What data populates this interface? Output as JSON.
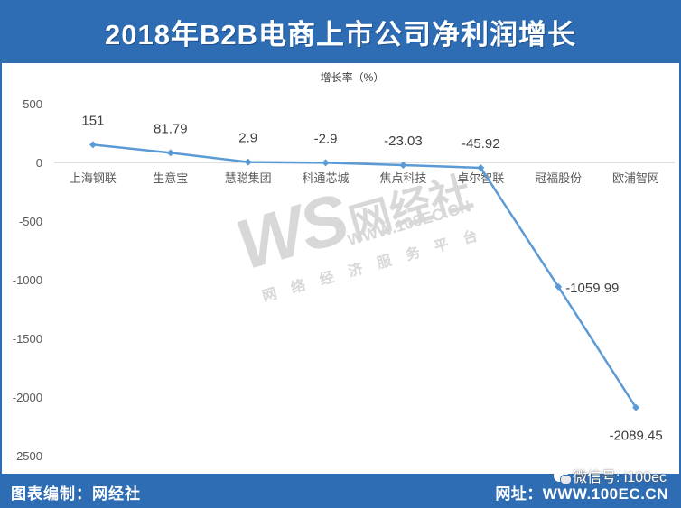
{
  "header": {
    "title": "2018年B2B电商上市公司净利润增长"
  },
  "footer": {
    "left_text": "图表编制：网经社",
    "right_text": "网址：WWW.100EC.CN"
  },
  "wechat": {
    "text": "微信号: i100ec"
  },
  "watermark": {
    "logo": "WS",
    "name": "网经社",
    "url": "WWW.100EC.CN",
    "tagline": "网络经济服务平台"
  },
  "colors": {
    "header_bg": "#2e6db3",
    "series": "#5b9bd5",
    "text": "#404040",
    "axis_tick": "#595959"
  },
  "chart_data": {
    "type": "line",
    "title": "",
    "ylabel": "增长率（%）",
    "xlabel": "",
    "categories": [
      "上海钢联",
      "生意宝",
      "慧聪集团",
      "科通芯城",
      "焦点科技",
      "卓尔智联",
      "冠福股份",
      "欧浦智网"
    ],
    "series": [
      {
        "values": [
          151,
          81.79,
          2.9,
          -2.9,
          -23.03,
          -45.92,
          -1059.99,
          -2089.45
        ]
      }
    ],
    "data_labels": [
      "151",
      "81.79",
      "2.9",
      "-2.9",
      "-23.03",
      "-45.92",
      "-1059.99",
      "-2089.45"
    ],
    "ylim": [
      -2500,
      500
    ],
    "yticks": [
      500,
      0,
      -500,
      -1000,
      -1500,
      -2000,
      -2500
    ],
    "grid": false,
    "legend": "none"
  }
}
